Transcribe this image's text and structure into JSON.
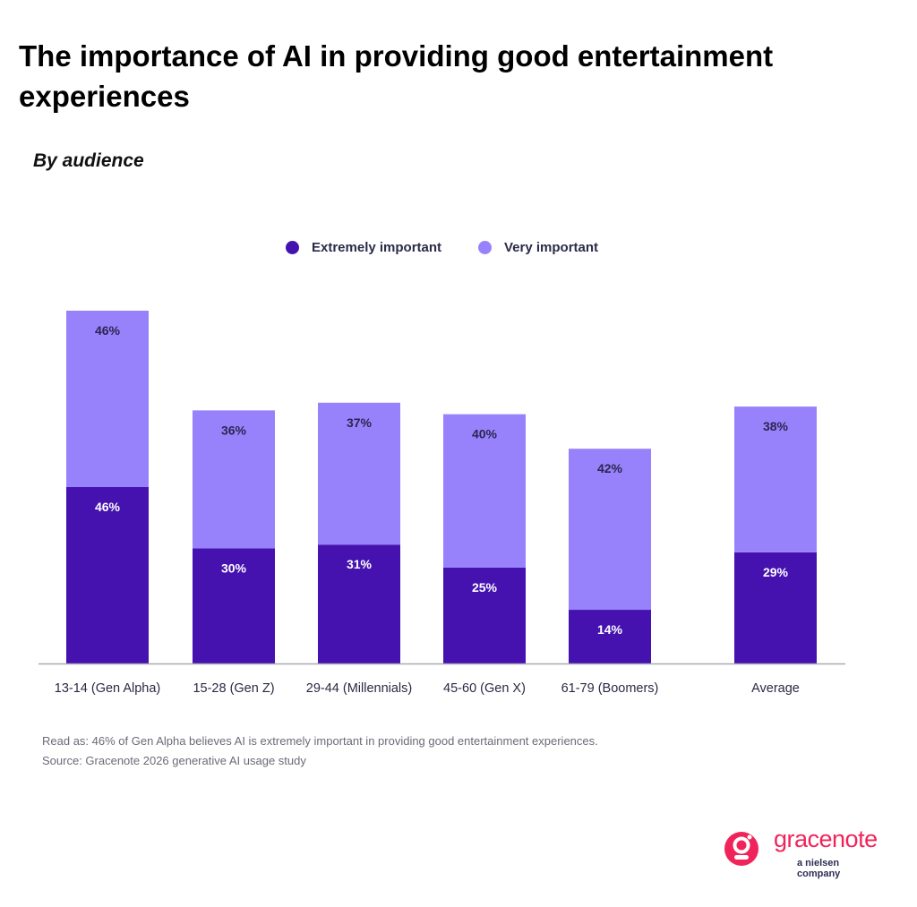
{
  "title": "The importance of AI in providing good entertainment experiences",
  "subtitle": "By audience",
  "legend": [
    {
      "label": "Extremely important",
      "color": "#4512b0"
    },
    {
      "label": "Very important",
      "color": "#9882fc"
    }
  ],
  "notes": {
    "read_as": "Read as: 46% of Gen Alpha believes AI is extremely important in providing good entertainment experiences.",
    "source": "Source: Gracenote 2026 generative AI usage study"
  },
  "logo": {
    "name": "gracenote",
    "tagline": "a nielsen company",
    "color": "#f0245a"
  },
  "chart_data": {
    "type": "bar",
    "stacked": true,
    "title": "The importance of AI in providing good entertainment experiences",
    "subtitle": "By audience",
    "xlabel": "",
    "ylabel": "",
    "ylim": [
      0,
      92
    ],
    "grid": false,
    "legend_position": "top-center",
    "categories": [
      "13-14 (Gen Alpha)",
      "15-28 (Gen Z)",
      "29-44 (Millennials)",
      "45-60 (Gen X)",
      "61-79 (Boomers)",
      "Average"
    ],
    "series": [
      {
        "name": "Extremely important",
        "color": "#4512b0",
        "label_color": "#ffffff",
        "values": [
          46,
          30,
          31,
          25,
          14,
          29
        ],
        "labels": [
          "46%",
          "30%",
          "31%",
          "25%",
          "14%",
          "29%"
        ]
      },
      {
        "name": "Very important",
        "color": "#9882fc",
        "label_color": "#2a2650",
        "values": [
          46,
          36,
          37,
          40,
          42,
          38
        ],
        "labels": [
          "46%",
          "36%",
          "37%",
          "40%",
          "42%",
          "38%"
        ]
      }
    ]
  }
}
